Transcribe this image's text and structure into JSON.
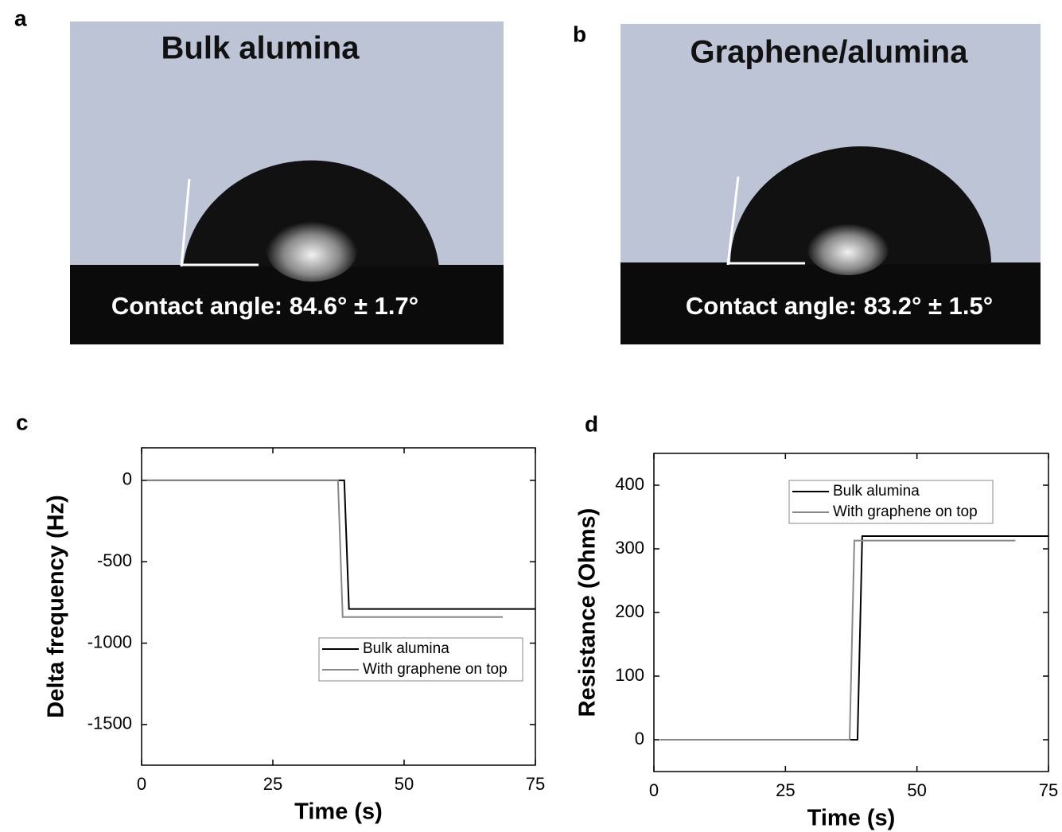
{
  "panels": [
    {
      "label": "a",
      "title": "Bulk alumina",
      "caption": "Contact angle: 84.6° ± 1.7°"
    },
    {
      "label": "b",
      "title": "Graphene/alumina",
      "caption": "Contact angle: 83.2° ± 1.5°"
    }
  ],
  "chart_data": [
    {
      "type": "line",
      "panel": "c",
      "xlabel": "Time (s)",
      "ylabel": "Delta frequency (Hz)",
      "xlim": [
        0,
        75
      ],
      "xticks": [
        0,
        25,
        50,
        75
      ],
      "ylim": [
        -1750,
        200
      ],
      "yticks": [
        0,
        -500,
        -1000,
        -1500
      ],
      "legend": "lower right",
      "series": [
        {
          "name": "Bulk alumina",
          "color": "#000000",
          "x": [
            1,
            38.6,
            39.5,
            75
          ],
          "values": [
            0,
            0,
            -790,
            -790
          ]
        },
        {
          "name": "With graphene on top",
          "color": "#888888",
          "x": [
            1,
            37.4,
            38.3,
            68.8
          ],
          "values": [
            0,
            0,
            -840,
            -840
          ]
        }
      ]
    },
    {
      "type": "line",
      "panel": "d",
      "xlabel": "Time (s)",
      "ylabel": "Resistance (Ohms)",
      "xlim": [
        0,
        75
      ],
      "xticks": [
        0,
        25,
        50,
        75
      ],
      "ylim": [
        -50,
        450
      ],
      "yticks": [
        0,
        100,
        200,
        300,
        400
      ],
      "legend": "upper right",
      "series": [
        {
          "name": "Bulk alumina",
          "color": "#000000",
          "x": [
            1.2,
            38.7,
            39.6,
            75
          ],
          "values": [
            0,
            0,
            320,
            320
          ]
        },
        {
          "name": "With graphene on top",
          "color": "#888888",
          "x": [
            1.2,
            37.2,
            38.1,
            68.7
          ],
          "values": [
            0,
            0,
            313,
            313
          ]
        }
      ]
    }
  ]
}
